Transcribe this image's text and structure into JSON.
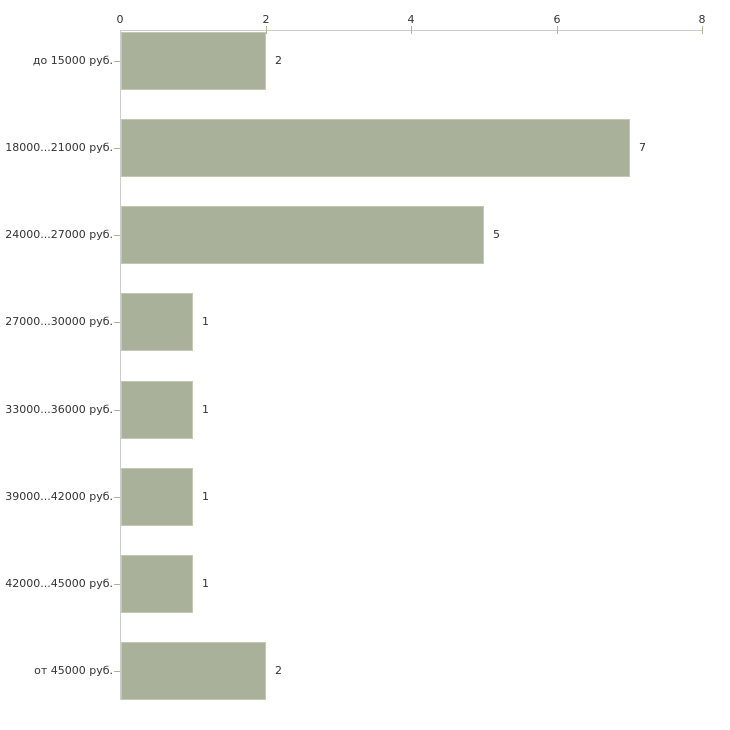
{
  "chart_data": {
    "type": "bar",
    "orientation": "horizontal",
    "title": "",
    "xlabel": "",
    "ylabel": "",
    "categories": [
      "до 15000 руб.",
      "18000...21000 руб.",
      "24000...27000 руб.",
      "27000...30000 руб.",
      "33000...36000 руб.",
      "39000...42000 руб.",
      "42000...45000 руб.",
      "от 45000 руб."
    ],
    "values": [
      2,
      7,
      5,
      1,
      1,
      1,
      1,
      2
    ],
    "value_labels": [
      "2",
      "7",
      "5",
      "1",
      "1",
      "1",
      "1",
      "2"
    ],
    "xlim": [
      0,
      8
    ],
    "x_ticks": [
      0,
      2,
      4,
      6,
      8
    ],
    "x_tick_labels": [
      "0",
      "2",
      "4",
      "6",
      "8"
    ],
    "axis_position": "top",
    "grid": false,
    "legend": false,
    "colors": {
      "background": "#ffffff",
      "bar_fill": "#aab19a",
      "bar_edge": "#c3c8b2",
      "axis_line": "#cccccc",
      "tick_mark": "#b3b88a",
      "category_tick": "#b0b59a",
      "text": "#333333"
    }
  }
}
